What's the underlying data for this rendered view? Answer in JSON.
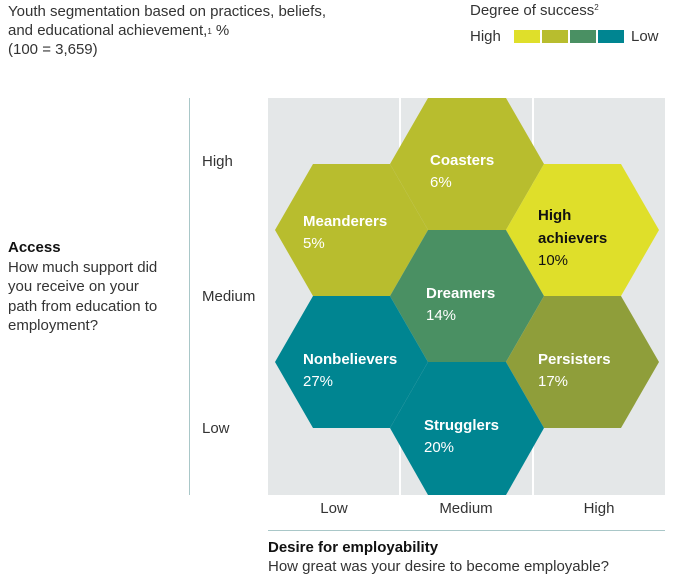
{
  "header": {
    "subtitle_line1": "Youth segmentation based on practices, beliefs,",
    "subtitle_line2": "and educational achievement,",
    "subtitle_footnote": "1",
    "subtitle_unit": " %",
    "subtitle_line3": "(100 = 3,659)"
  },
  "legend": {
    "title": "Degree of success",
    "footnote": "2",
    "high_label": "High",
    "low_label": "Low",
    "colors": [
      "#dfdf2a",
      "#b8bd2e",
      "#4a9063",
      "#008591"
    ]
  },
  "y_axis": {
    "title": "Access",
    "question": "How much support did you receive on your path from education to employment?",
    "ticks": [
      "High",
      "Medium",
      "Low"
    ]
  },
  "x_axis": {
    "title": "Desire for employability",
    "question": "How great was your desire to become employable?",
    "ticks": [
      "Low",
      "Medium",
      "High"
    ]
  },
  "segments": [
    {
      "name": "Coasters",
      "value": "6%",
      "color": "#b8bd2e",
      "text_color": "#ffffff"
    },
    {
      "name": "Meanderers",
      "value": "5%",
      "color": "#b8bd2e",
      "text_color": "#ffffff"
    },
    {
      "name": "High achievers",
      "name_line1": "High",
      "name_line2": "achievers",
      "value": "10%",
      "color": "#dfdf2a",
      "text_color": "#111111"
    },
    {
      "name": "Dreamers",
      "value": "14%",
      "color": "#4a9063",
      "text_color": "#ffffff"
    },
    {
      "name": "Nonbelievers",
      "value": "27%",
      "color": "#008591",
      "text_color": "#ffffff"
    },
    {
      "name": "Persisters",
      "value": "17%",
      "color": "#8f9e3a",
      "text_color": "#ffffff"
    },
    {
      "name": "Strugglers",
      "value": "20%",
      "color": "#008591",
      "text_color": "#ffffff"
    }
  ]
}
